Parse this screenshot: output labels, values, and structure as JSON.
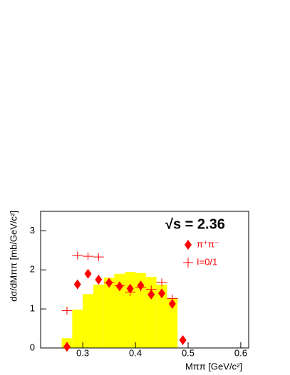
{
  "chart_data": {
    "type": "histogram",
    "annotation": "√s = 2.36",
    "xlabel": "Mππ [GeV/c²]",
    "ylabel": "dσ/dMππ [mb/GeV/c²]",
    "xlim": [
      0.22,
      0.615
    ],
    "ylim": [
      0,
      3.5
    ],
    "xticks": [
      0.3,
      0.4,
      0.5,
      0.6
    ],
    "yticks": [
      0,
      1,
      2,
      3
    ],
    "legend": "top-right",
    "histogram": {
      "color": "#ffff00",
      "bins": [
        0.26,
        0.28,
        0.3,
        0.32,
        0.34,
        0.36,
        0.38,
        0.4,
        0.42,
        0.44,
        0.46,
        0.48
      ],
      "counts": [
        0.25,
        0.98,
        1.38,
        1.62,
        1.8,
        1.9,
        1.95,
        1.92,
        1.82,
        1.62,
        1.28
      ]
    },
    "series": [
      {
        "name": "π⁺π⁻",
        "color": "#ff0000",
        "marker": "diamond",
        "x": [
          0.27,
          0.29,
          0.31,
          0.33,
          0.35,
          0.37,
          0.39,
          0.41,
          0.43,
          0.45,
          0.47,
          0.49
        ],
        "values": [
          0.03,
          1.63,
          1.9,
          1.75,
          1.67,
          1.58,
          1.52,
          1.6,
          1.37,
          1.4,
          1.13,
          0.2
        ]
      },
      {
        "name": "I=0/1",
        "color": "#ff0000",
        "marker": "cross",
        "x": [
          0.27,
          0.29,
          0.31,
          0.33,
          0.35,
          0.37,
          0.39,
          0.41,
          0.43,
          0.45,
          0.47
        ],
        "values": [
          0.96,
          2.37,
          2.35,
          2.33,
          1.67,
          1.6,
          1.43,
          1.55,
          1.5,
          1.68,
          1.27
        ],
        "errors": [
          0.1,
          0.1,
          0.1,
          0.1,
          0.1,
          0.1,
          0.1,
          0.1,
          0.1,
          0.1,
          0.1
        ]
      }
    ]
  }
}
